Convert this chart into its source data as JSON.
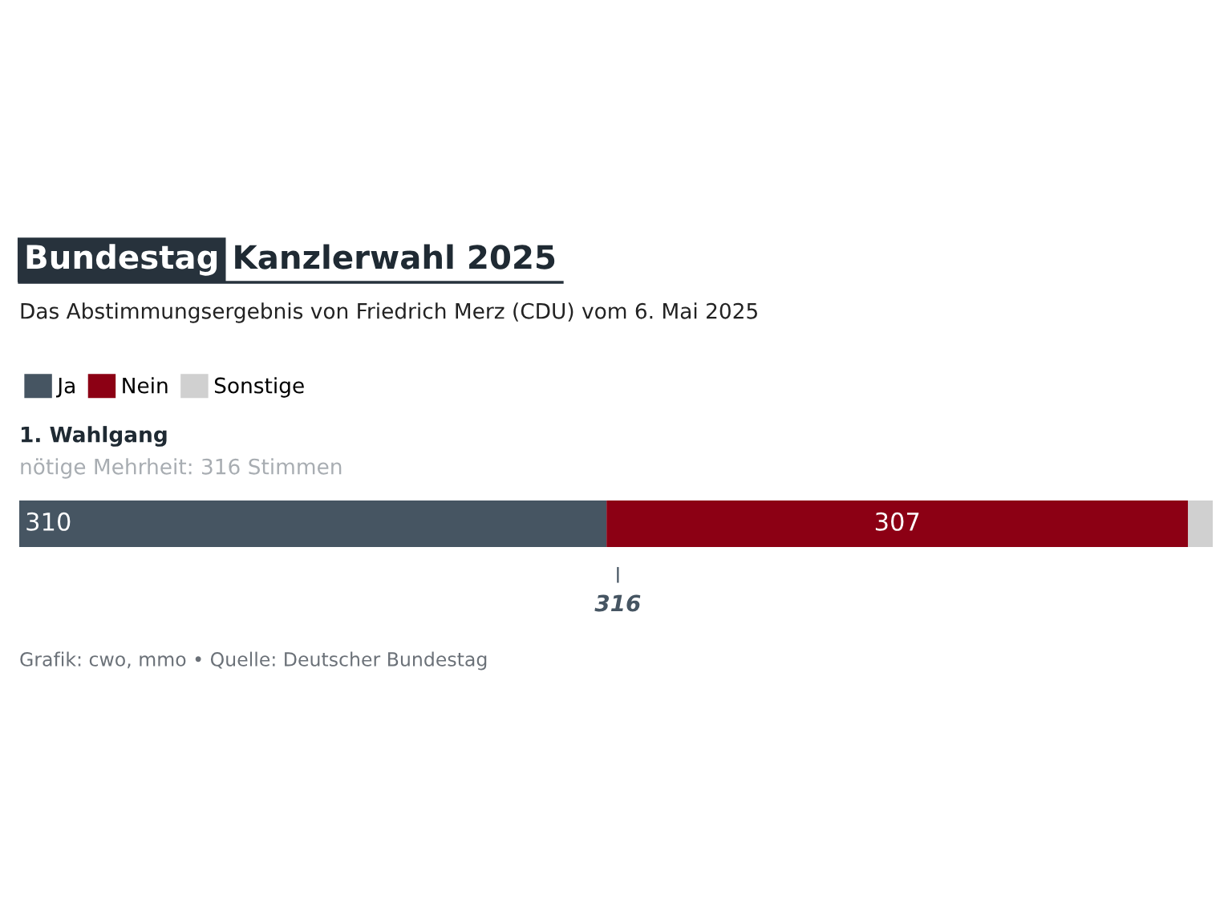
{
  "chart_data": {
    "type": "bar",
    "orientation": "horizontal",
    "stacked": true,
    "title": "Bundestag Kanzlerwahl 2025",
    "subtitle": "Das Abstimmungsergebnis von Friedrich Merz (CDU) vom 6. Mai 2025",
    "categories": [
      "1. Wahlgang"
    ],
    "series": [
      {
        "name": "Ja",
        "color": "#465562",
        "values": [
          310
        ],
        "value_labels": [
          "310"
        ]
      },
      {
        "name": "Nein",
        "color": "#8c0014",
        "values": [
          307
        ],
        "value_labels": [
          "307"
        ]
      },
      {
        "name": "Sonstige",
        "color": "#d0d0d0",
        "values": [
          13
        ],
        "value_labels": [
          null
        ]
      }
    ],
    "xlim": [
      0,
      630
    ],
    "legend": "top left",
    "ref_lines": [
      {
        "axis": "x",
        "value": 316,
        "label": "316",
        "color": "#465562"
      }
    ],
    "annotations": [
      "nötige Mehrheit: 316 Stimmen",
      "Grafik: cwo, mmo • Quelle: Deutscher Bundestag"
    ]
  }
}
